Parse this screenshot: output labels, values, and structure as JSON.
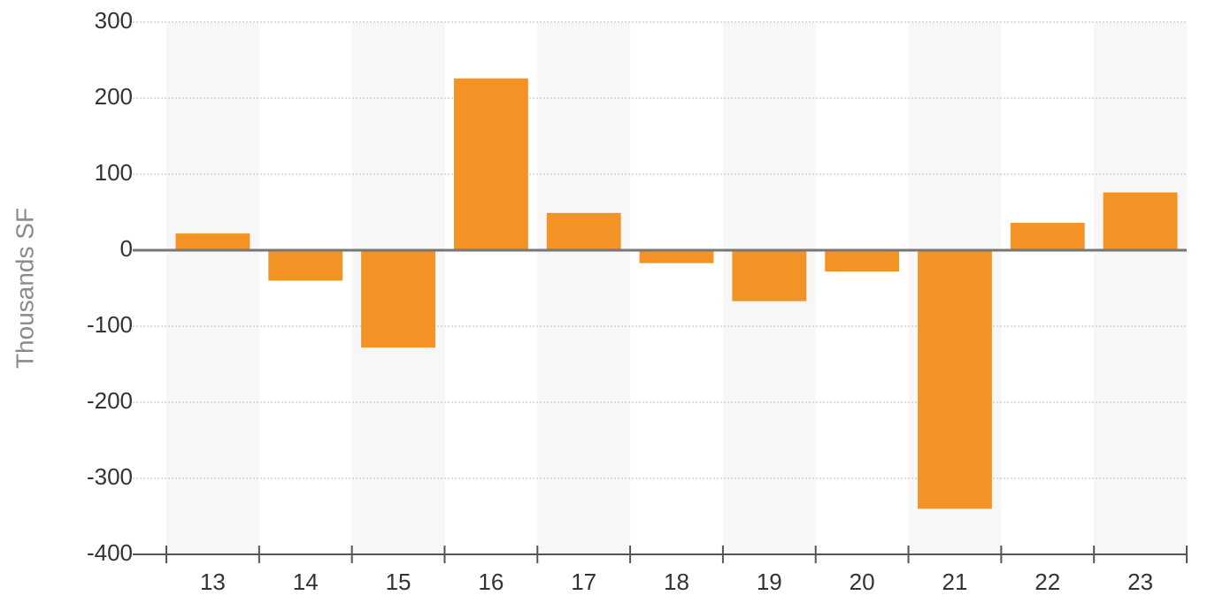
{
  "chart_data": {
    "type": "bar",
    "y_label": "Thousands SF",
    "categories": [
      "13",
      "14",
      "15",
      "16",
      "17",
      "18",
      "19",
      "20",
      "21",
      "22",
      "23"
    ],
    "values": [
      22,
      -40,
      -128,
      226,
      49,
      -17,
      -67,
      -28,
      -340,
      36,
      76
    ],
    "color": "#f39325",
    "ylim": [
      -400,
      300
    ],
    "yticks": [
      -400,
      -300,
      -200,
      -100,
      0,
      100,
      200,
      300
    ],
    "grid": true
  }
}
